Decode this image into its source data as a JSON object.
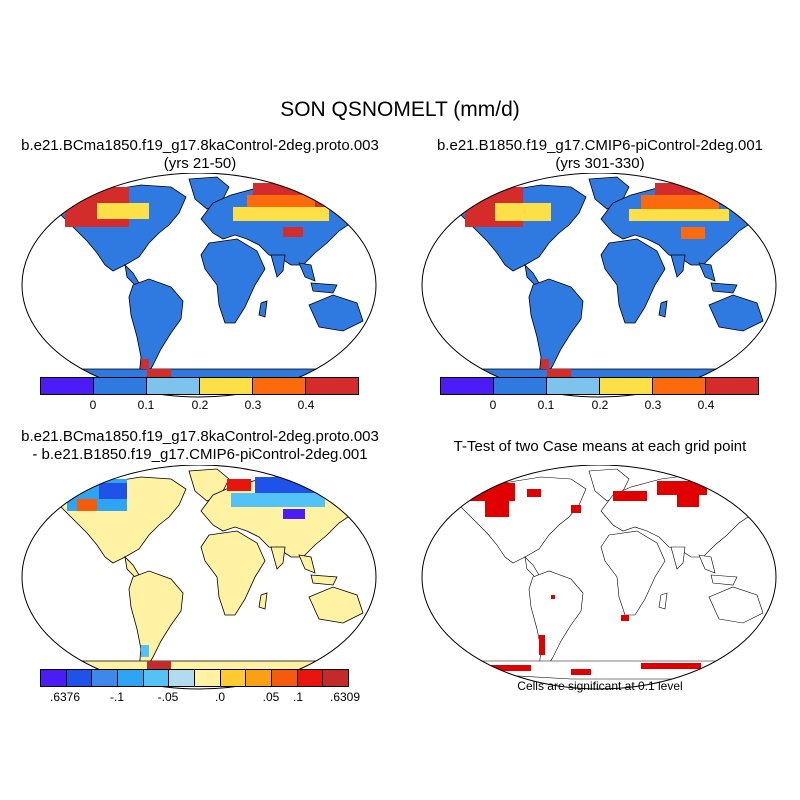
{
  "title": "SON QSNOMELT (mm/d)",
  "panels": [
    {
      "title_line1": "b.e21.BCma1850.f19_g17.8kaControl-2deg.proto.003",
      "title_line2": "(yrs 21-50)"
    },
    {
      "title_line1": "b.e21.B1850.f19_g17.CMIP6-piControl-2deg.001",
      "title_line2": "(yrs 301-330)"
    },
    {
      "title_line1": "b.e21.BCma1850.f19_g17.8kaControl-2deg.proto.003",
      "title_line2": "- b.e21.B1850.f19_g17.CMIP6-piControl-2deg.001"
    },
    {
      "title_line1": "T-Test of two Case means at each grid point",
      "title_line2": ""
    }
  ],
  "colorbar_abs": {
    "colors": [
      "#4b1cf5",
      "#2f7ae0",
      "#7cc3ee",
      "#fde047",
      "#fb6a0c",
      "#d42b2b"
    ],
    "labels": [
      "0",
      "0.1",
      "0.2",
      "0.3",
      "0.4"
    ]
  },
  "colorbar_diff": {
    "colors": [
      "#4b1cf5",
      "#1f52e8",
      "#3f87ea",
      "#2ea5f3",
      "#53c3f7",
      "#b1dcf0",
      "#fff2a3",
      "#fdcb30",
      "#f9a114",
      "#f55b0c",
      "#e8140e",
      "#c42a2a"
    ],
    "labels": [
      ".6376",
      "-.1",
      "-.05",
      ".0",
      ".05",
      ".1",
      ".6309"
    ]
  },
  "significance_note": "Cells are significant at 0.1 level",
  "colors": {
    "land_low": "#2f7ae0",
    "diff_neutral": "#fff2a3",
    "significant": "#e00000"
  }
}
